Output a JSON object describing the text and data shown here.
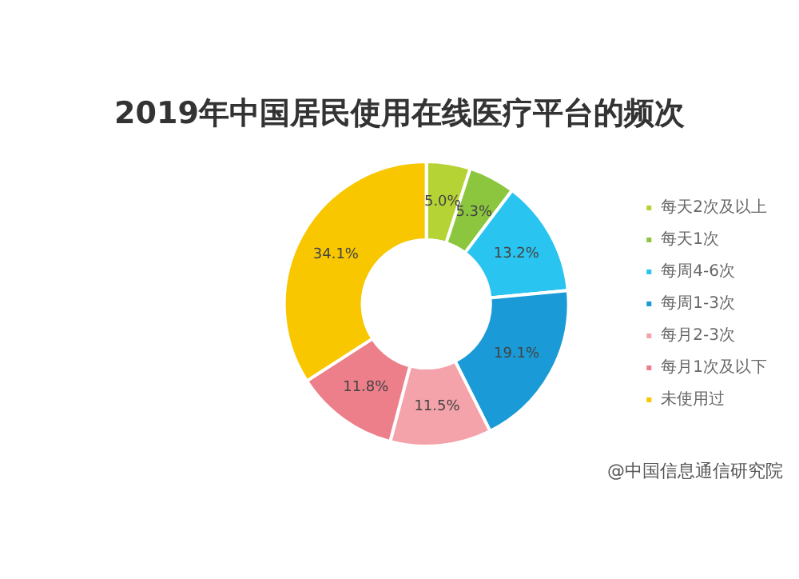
{
  "chart_data": {
    "type": "donut",
    "title": "2019年中国居民使用在线医疗平台的频次",
    "categories": [
      "每天2次及以上",
      "每天1次",
      "每周4-6次",
      "每周1-3次",
      "每月2-3次",
      "每月1次及以下",
      "未使用过"
    ],
    "values": [
      5.0,
      5.3,
      13.2,
      19.1,
      11.5,
      11.8,
      34.1
    ],
    "value_labels": [
      "5.0%",
      "5.3%",
      "13.2%",
      "19.1%",
      "11.5%",
      "11.8%",
      "34.1%"
    ],
    "colors": [
      "#b5d334",
      "#8cc63f",
      "#29c4f0",
      "#1a9ad6",
      "#f4a3aa",
      "#ec7f8a",
      "#f8c700"
    ],
    "legend": "right",
    "annotations": [
      "@中国信息通信研究院"
    ]
  }
}
